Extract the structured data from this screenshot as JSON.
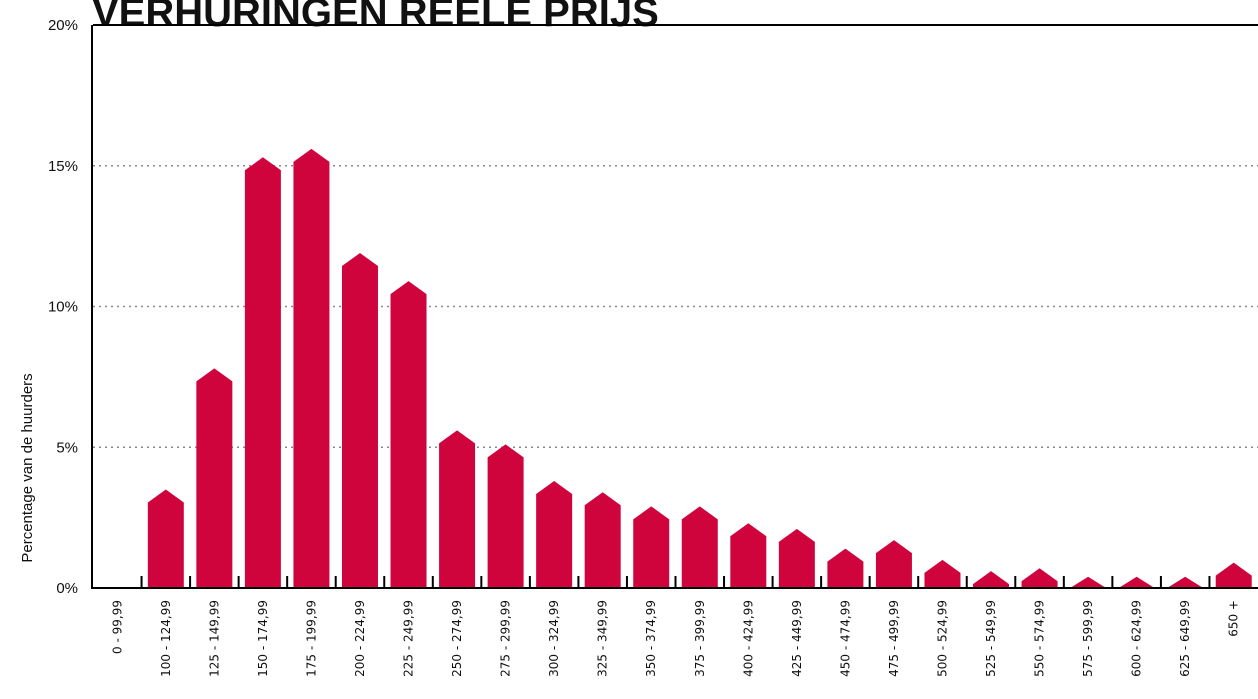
{
  "chart_data": {
    "type": "bar",
    "title": "VERHURINGEN REELE PRIJS",
    "ylabel": "Percentage van de huurders",
    "categories": [
      "0 - 99,99",
      "100 - 124,99",
      "125 - 149,99",
      "150 - 174,99",
      "175 - 199,99",
      "200 - 224,99",
      "225 - 249,99",
      "250 - 274,99",
      "275 - 299,99",
      "300 - 324,99",
      "325 - 349,99",
      "350 - 374,99",
      "375 - 399,99",
      "400 - 424,99",
      "425 - 449,99",
      "450 - 474,99",
      "475 - 499,99",
      "500 - 524,99",
      "525 - 549,99",
      "550 - 574,99",
      "575 - 599,99",
      "600 - 624,99",
      "625 - 649,99",
      "650 +"
    ],
    "values": [
      0,
      3.5,
      7.8,
      15.3,
      15.6,
      11.9,
      10.9,
      5.6,
      5.1,
      3.8,
      3.4,
      2.9,
      2.9,
      2.3,
      2.1,
      1.4,
      1.7,
      1.0,
      0.6,
      0.7,
      0.4,
      0.4,
      0.4,
      0.9
    ],
    "color": "#d0043c",
    "ylim": [
      0,
      20
    ],
    "yticks": [
      {
        "value": 0,
        "label": "0%"
      },
      {
        "value": 5,
        "label": "5%"
      },
      {
        "value": 10,
        "label": "10%"
      },
      {
        "value": 15,
        "label": "15%"
      },
      {
        "value": 20,
        "label": "20%"
      }
    ],
    "grid": true
  }
}
